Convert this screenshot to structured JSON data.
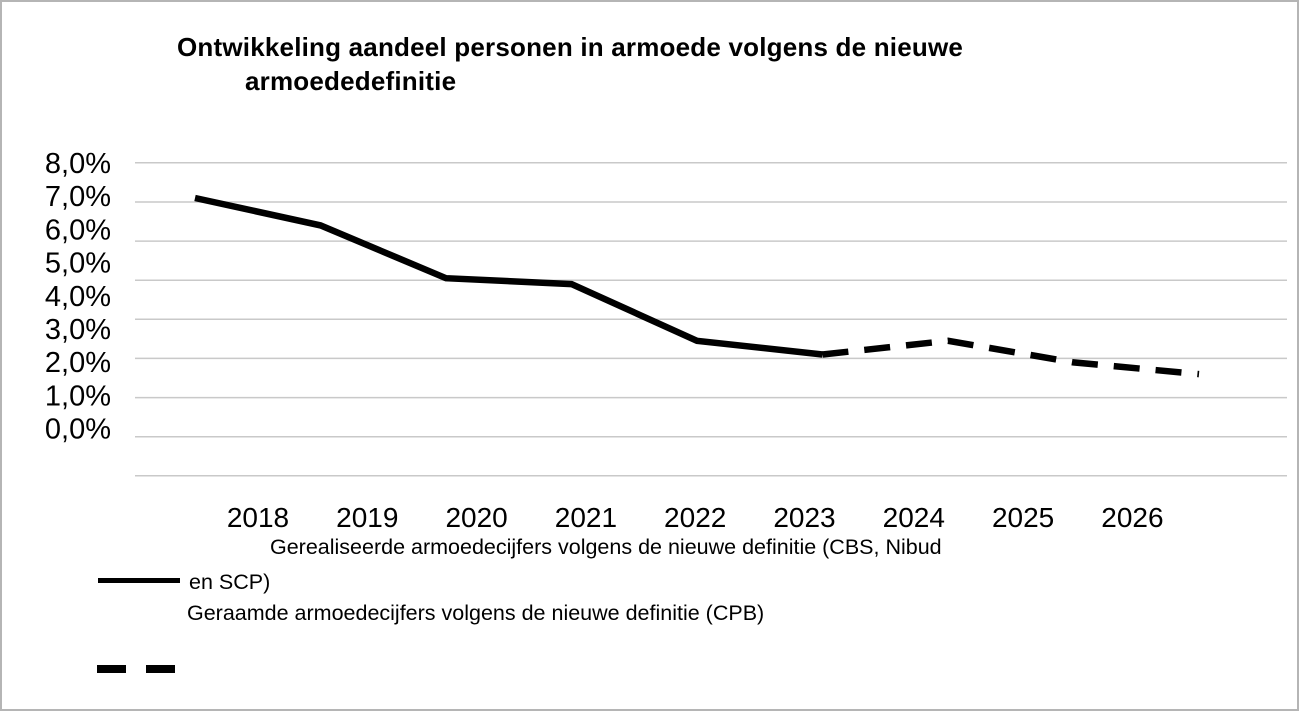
{
  "title": {
    "line1": "Ontwikkeling aandeel personen in armoede volgens de nieuwe",
    "line2": "armoededefinitie"
  },
  "chart_data": {
    "type": "line",
    "title": "Ontwikkeling aandeel personen in armoede volgens de nieuwe armoededefinitie",
    "categories": [
      "2018",
      "2019",
      "2020",
      "2021",
      "2022",
      "2023",
      "2024",
      "2025",
      "2026"
    ],
    "series": [
      {
        "name": "Gerealiseerde armoedecijfers volgens de nieuwe definitie (CBS, Nibud en SCP)",
        "style": "solid",
        "values": [
          7.1,
          6.4,
          5.05,
          4.9,
          3.45,
          3.1,
          null,
          null,
          null
        ]
      },
      {
        "name": "Geraamde armoedecijfers volgens de nieuwe definitie (CPB)",
        "style": "dashed",
        "values": [
          null,
          null,
          null,
          null,
          null,
          3.1,
          3.45,
          2.9,
          2.6
        ]
      }
    ],
    "xlabel": "",
    "ylabel": "",
    "ylim": [
      0,
      8
    ],
    "ytick_labels": [
      "8,0%",
      "7,0%",
      "6,0%",
      "5,0%",
      "4,0%",
      "3,0%",
      "2,0%",
      "1,0%",
      "0,0%"
    ],
    "grid": true,
    "legend_position": "bottom"
  },
  "legend": {
    "entries": [
      {
        "label": "Gerealiseerde armoedecijfers volgens de nieuwe definitie (CBS, Nibud en SCP)",
        "line1": "Gerealiseerde armoedecijfers volgens de nieuwe definitie (CBS, Nibud",
        "line2": "en SCP)",
        "style": "solid"
      },
      {
        "label": "Geraamde armoedecijfers volgens de nieuwe definitie (CPB)",
        "line1": "Geraamde armoedecijfers volgens de nieuwe definitie (CPB)",
        "style": "dashed"
      }
    ]
  },
  "colors": {
    "series": "#000000",
    "grid": "#c9c9c9",
    "border": "#b5b5b5",
    "text": "#000000"
  }
}
